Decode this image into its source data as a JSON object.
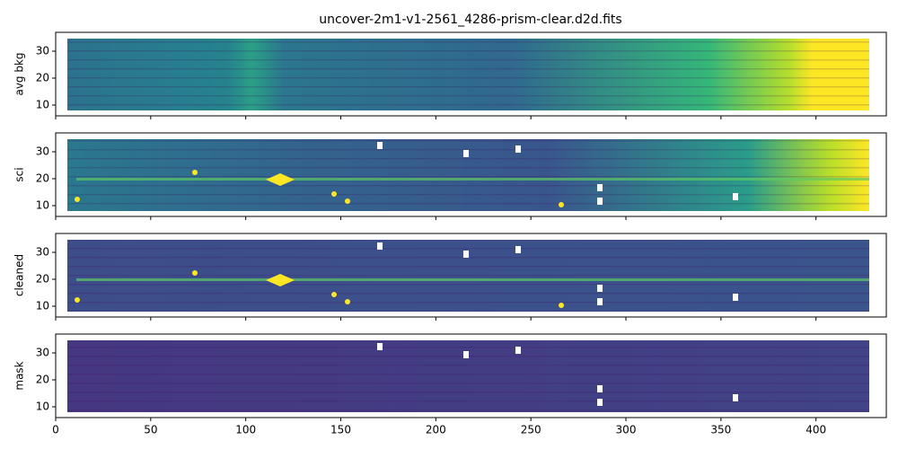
{
  "chart_data": [
    {
      "type": "image",
      "title": "uncover-2m1-v1-2561_4286-prism-clear.d2d.fits",
      "ylabel": "avg bkg",
      "xlim": [
        0,
        437
      ],
      "ylim": [
        6,
        37
      ],
      "yticks": [
        10,
        20,
        30
      ],
      "xticks": [
        0,
        50,
        100,
        150,
        200,
        250,
        300,
        350,
        400
      ]
    },
    {
      "type": "image",
      "ylabel": "sci",
      "xlim": [
        0,
        437
      ],
      "ylim": [
        6,
        37
      ],
      "yticks": [
        10,
        20,
        30
      ],
      "xticks": [
        0,
        50,
        100,
        150,
        200,
        250,
        300,
        350,
        400
      ]
    },
    {
      "type": "image",
      "ylabel": "cleaned",
      "xlim": [
        0,
        437
      ],
      "ylim": [
        6,
        37
      ],
      "yticks": [
        10,
        20,
        30
      ],
      "xticks": [
        0,
        50,
        100,
        150,
        200,
        250,
        300,
        350,
        400
      ]
    },
    {
      "type": "image",
      "ylabel": "mask",
      "xlim": [
        0,
        437
      ],
      "ylim": [
        6,
        37
      ],
      "yticks": [
        10,
        20,
        30
      ],
      "xticks": [
        0,
        50,
        100,
        150,
        200,
        250,
        300,
        350,
        400
      ]
    }
  ]
}
